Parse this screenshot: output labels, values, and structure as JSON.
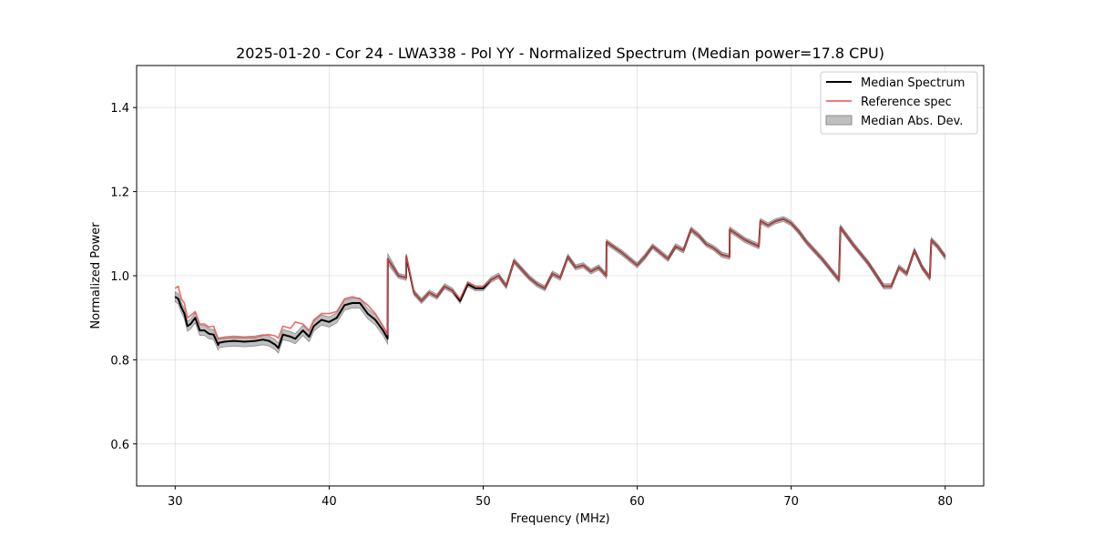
{
  "chart_data": {
    "type": "line",
    "title": "2025-01-20 - Cor 24 - LWA338 - Pol YY - Normalized Spectrum (Median power=17.8 CPU)",
    "xlabel": "Frequency (MHz)",
    "ylabel": "Normalized Power",
    "xlim": [
      27.5,
      82.5
    ],
    "ylim": [
      0.5,
      1.5
    ],
    "xticks": [
      30,
      40,
      50,
      60,
      70,
      80
    ],
    "xtick_labels": [
      "30",
      "40",
      "50",
      "60",
      "70",
      "80"
    ],
    "yticks": [
      0.6,
      0.8,
      1.0,
      1.2,
      1.4
    ],
    "ytick_labels": [
      "0.6",
      "0.8",
      "1.0",
      "1.2",
      "1.4"
    ],
    "grid": true,
    "legend_position": "top-right",
    "colors": {
      "median": "#000000",
      "reference": "#e8514f",
      "mad_fill": "#bfbfbf",
      "mad_edge": "#8c8c8c"
    },
    "series": [
      {
        "name": "Median Spectrum",
        "x": [
          30.0,
          30.2,
          30.4,
          30.6,
          30.8,
          31.0,
          31.3,
          31.6,
          31.9,
          32.2,
          32.5,
          32.8,
          32.81,
          33.2,
          33.8,
          34.5,
          35.2,
          35.7,
          36.1,
          36.5,
          36.7,
          37.0,
          37.5,
          37.8,
          38.3,
          38.7,
          39.0,
          39.5,
          40.0,
          40.5,
          41.0,
          41.5,
          42.0,
          42.5,
          43.0,
          43.5,
          43.8,
          43.81,
          44.5,
          45.0,
          45.01,
          45.5,
          46.0,
          46.5,
          47.0,
          47.5,
          48.0,
          48.5,
          49.0,
          49.5,
          50.0,
          50.5,
          51.0,
          51.5,
          52.0,
          52.5,
          53.0,
          53.5,
          54.0,
          54.5,
          55.0,
          55.5,
          56.0,
          56.5,
          57.0,
          57.5,
          58.0,
          58.01,
          59.0,
          60.0,
          60.5,
          61.0,
          62.0,
          62.5,
          63.0,
          63.5,
          64.0,
          64.5,
          65.0,
          65.5,
          66.0,
          66.01,
          67.0,
          67.9,
          68.0,
          68.5,
          69.0,
          69.5,
          70.0,
          70.5,
          71.0,
          72.0,
          73.1,
          73.2,
          74.0,
          75.0,
          76.0,
          76.5,
          77.0,
          77.5,
          78.0,
          78.5,
          79.0,
          79.1,
          79.5,
          80.0
        ],
        "y": [
          0.95,
          0.945,
          0.925,
          0.91,
          0.88,
          0.885,
          0.9,
          0.87,
          0.87,
          0.862,
          0.86,
          0.835,
          0.84,
          0.843,
          0.845,
          0.843,
          0.845,
          0.848,
          0.845,
          0.836,
          0.828,
          0.86,
          0.855,
          0.85,
          0.87,
          0.855,
          0.88,
          0.895,
          0.89,
          0.9,
          0.93,
          0.935,
          0.935,
          0.91,
          0.895,
          0.87,
          0.85,
          1.04,
          1.0,
          0.995,
          1.045,
          0.96,
          0.94,
          0.96,
          0.95,
          0.975,
          0.965,
          0.94,
          0.98,
          0.97,
          0.97,
          0.99,
          1.0,
          0.975,
          1.035,
          1.015,
          0.995,
          0.98,
          0.97,
          1.005,
          0.995,
          1.045,
          1.02,
          1.025,
          1.01,
          1.02,
          1.0,
          1.08,
          1.055,
          1.025,
          1.045,
          1.07,
          1.04,
          1.07,
          1.06,
          1.11,
          1.095,
          1.075,
          1.065,
          1.05,
          1.045,
          1.11,
          1.085,
          1.07,
          1.13,
          1.12,
          1.13,
          1.135,
          1.125,
          1.105,
          1.08,
          1.04,
          0.99,
          1.115,
          1.075,
          1.03,
          0.975,
          0.975,
          1.02,
          1.005,
          1.06,
          1.02,
          0.995,
          1.085,
          1.07,
          1.045
        ]
      },
      {
        "name": "Reference spec",
        "x": [
          30.0,
          30.2,
          30.4,
          30.6,
          30.8,
          31.0,
          31.3,
          31.6,
          31.9,
          32.2,
          32.5,
          32.8,
          32.81,
          33.2,
          33.8,
          34.5,
          35.2,
          35.7,
          36.1,
          36.5,
          36.7,
          37.0,
          37.5,
          37.8,
          38.3,
          38.7,
          39.0,
          39.5,
          40.0,
          40.5,
          41.0,
          41.5,
          42.0,
          42.5,
          43.0,
          43.5,
          43.8,
          43.81,
          44.5,
          45.0,
          45.01,
          45.5,
          46.0,
          46.5,
          47.0,
          47.5,
          48.0,
          48.5,
          49.0,
          49.5,
          50.0,
          50.5,
          51.0,
          51.5,
          52.0,
          52.5,
          53.0,
          53.5,
          54.0,
          54.5,
          55.0,
          55.5,
          56.0,
          56.5,
          57.0,
          57.5,
          58.0,
          58.01,
          59.0,
          60.0,
          60.5,
          61.0,
          62.0,
          62.5,
          63.0,
          63.5,
          64.0,
          64.5,
          65.0,
          65.5,
          66.0,
          66.01,
          67.0,
          67.9,
          68.0,
          68.5,
          69.0,
          69.5,
          70.0,
          70.5,
          71.0,
          72.0,
          73.1,
          73.2,
          74.0,
          75.0,
          76.0,
          76.5,
          77.0,
          77.5,
          78.0,
          78.5,
          79.0,
          79.1,
          79.5,
          80.0
        ],
        "y": [
          0.97,
          0.975,
          0.945,
          0.935,
          0.9,
          0.905,
          0.915,
          0.885,
          0.885,
          0.878,
          0.88,
          0.85,
          0.85,
          0.852,
          0.853,
          0.853,
          0.853,
          0.858,
          0.86,
          0.857,
          0.852,
          0.88,
          0.875,
          0.89,
          0.885,
          0.87,
          0.895,
          0.91,
          0.91,
          0.915,
          0.945,
          0.95,
          0.945,
          0.93,
          0.91,
          0.88,
          0.86,
          1.04,
          1.0,
          0.995,
          1.05,
          0.96,
          0.94,
          0.96,
          0.95,
          0.975,
          0.965,
          0.945,
          0.985,
          0.975,
          0.975,
          0.99,
          1.0,
          0.975,
          1.035,
          1.015,
          0.995,
          0.98,
          0.97,
          1.005,
          0.995,
          1.045,
          1.02,
          1.025,
          1.01,
          1.02,
          1.0,
          1.08,
          1.055,
          1.025,
          1.045,
          1.07,
          1.04,
          1.07,
          1.06,
          1.11,
          1.095,
          1.075,
          1.065,
          1.05,
          1.045,
          1.11,
          1.085,
          1.07,
          1.13,
          1.12,
          1.13,
          1.135,
          1.125,
          1.105,
          1.08,
          1.04,
          0.99,
          1.115,
          1.075,
          1.03,
          0.975,
          0.975,
          1.02,
          1.005,
          1.06,
          1.02,
          0.995,
          1.085,
          1.07,
          1.045
        ]
      }
    ],
    "band": {
      "name": "Median Abs. Dev.",
      "half_width_low_freq": 0.012,
      "half_width_high_freq": 0.006,
      "transition_freq": 44.0
    }
  }
}
